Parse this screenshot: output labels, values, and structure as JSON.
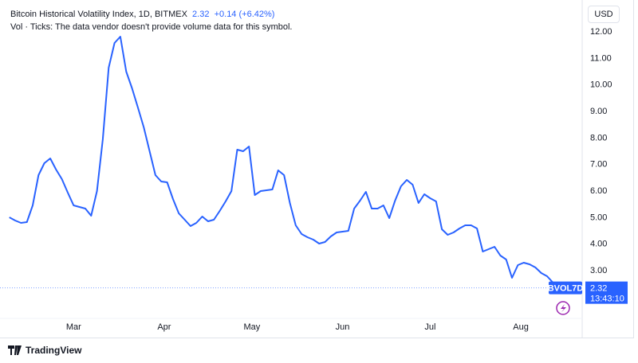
{
  "header": {
    "title": "Bitcoin Historical Volatility Index, 1D, BITMEX",
    "last": "2.32",
    "change": "+0.14 (+6.42%)",
    "vol_note": "Vol · Ticks: The data vendor doesn't provide volume data for this symbol."
  },
  "currency_button": "USD",
  "price_label": {
    "symbol": "BVOL7D",
    "value": "2.32",
    "countdown": "13:43:10"
  },
  "branding": "TradingView",
  "colors": {
    "line": "#2962ff",
    "label_bg": "#2962ff",
    "flash_icon": "#9c27b0"
  },
  "chart_data": {
    "type": "line",
    "title": "Bitcoin Historical Volatility Index, 1D, BITMEX",
    "start_date": "2024-02-08",
    "interval_days": 2,
    "values": [
      4.98,
      4.86,
      4.77,
      4.8,
      5.43,
      6.57,
      7.02,
      7.2,
      6.78,
      6.42,
      5.91,
      5.43,
      5.37,
      5.31,
      5.04,
      5.97,
      7.92,
      10.62,
      11.55,
      11.79,
      10.47,
      9.84,
      9.12,
      8.37,
      7.47,
      6.57,
      6.33,
      6.3,
      5.67,
      5.13,
      4.89,
      4.65,
      4.77,
      5.01,
      4.83,
      4.89,
      5.22,
      5.58,
      5.97,
      7.53,
      7.47,
      7.65,
      5.82,
      5.97,
      6.0,
      6.03,
      6.75,
      6.57,
      5.52,
      4.68,
      4.35,
      4.23,
      4.14,
      3.99,
      4.05,
      4.26,
      4.41,
      4.44,
      4.47,
      5.31,
      5.61,
      5.94,
      5.31,
      5.31,
      5.43,
      4.95,
      5.61,
      6.15,
      6.39,
      6.21,
      5.52,
      5.85,
      5.7,
      5.58,
      4.53,
      4.32,
      4.41,
      4.56,
      4.68,
      4.68,
      4.56,
      3.69,
      3.78,
      3.87,
      3.54,
      3.39,
      2.7,
      3.18,
      3.27,
      3.21,
      3.09,
      2.88,
      2.76,
      2.52,
      2.32
    ],
    "x_ticks": [
      {
        "label": "Mar",
        "date": "2024-03-01"
      },
      {
        "label": "Apr",
        "date": "2024-04-01"
      },
      {
        "label": "May",
        "date": "2024-05-01"
      },
      {
        "label": "Jun",
        "date": "2024-06-01"
      },
      {
        "label": "Jul",
        "date": "2024-07-01"
      },
      {
        "label": "Aug",
        "date": "2024-08-01"
      }
    ],
    "y_ticks": [
      "12.00",
      "11.00",
      "10.00",
      "9.00",
      "8.00",
      "7.00",
      "6.00",
      "5.00",
      "4.00",
      "3.00"
    ],
    "xlim": [
      "2024-02-07",
      "2024-08-22"
    ],
    "ylim": [
      1.4,
      12.9
    ],
    "grid": false,
    "last_price_line": 2.32
  }
}
